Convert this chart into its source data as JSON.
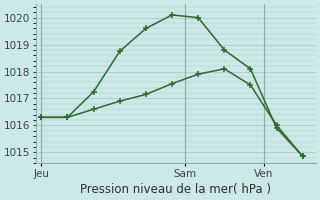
{
  "title": "Pression niveau de la mer( hPa )",
  "bg_color": "#cce8e8",
  "grid_color": "#b0cfcf",
  "line_color": "#2d6a2d",
  "line1_x": [
    0,
    1,
    2,
    3,
    4,
    5,
    6,
    7,
    8,
    9,
    10
  ],
  "line1_y": [
    1016.3,
    1016.3,
    1017.25,
    1018.75,
    1019.6,
    1020.1,
    1020.0,
    1018.8,
    1018.1,
    1015.9,
    1014.85
  ],
  "line2_x": [
    0,
    1,
    2,
    3,
    4,
    5,
    6,
    7,
    8,
    9,
    10
  ],
  "line2_y": [
    1016.3,
    1016.3,
    1016.6,
    1016.9,
    1017.15,
    1017.55,
    1017.9,
    1018.1,
    1017.5,
    1016.0,
    1014.85
  ],
  "ylim": [
    1014.6,
    1020.5
  ],
  "yticks": [
    1015,
    1016,
    1017,
    1018,
    1019,
    1020
  ],
  "xlim": [
    -0.2,
    10.5
  ],
  "day_labels": [
    "Jeu",
    "Sam",
    "Ven"
  ],
  "day_positions": [
    0.0,
    5.5,
    8.5
  ],
  "vline_positions": [
    0.0,
    5.5,
    8.5
  ],
  "vline_color": "#8aacac",
  "xlabel_fontsize": 8.5,
  "tick_fontsize": 7.5
}
